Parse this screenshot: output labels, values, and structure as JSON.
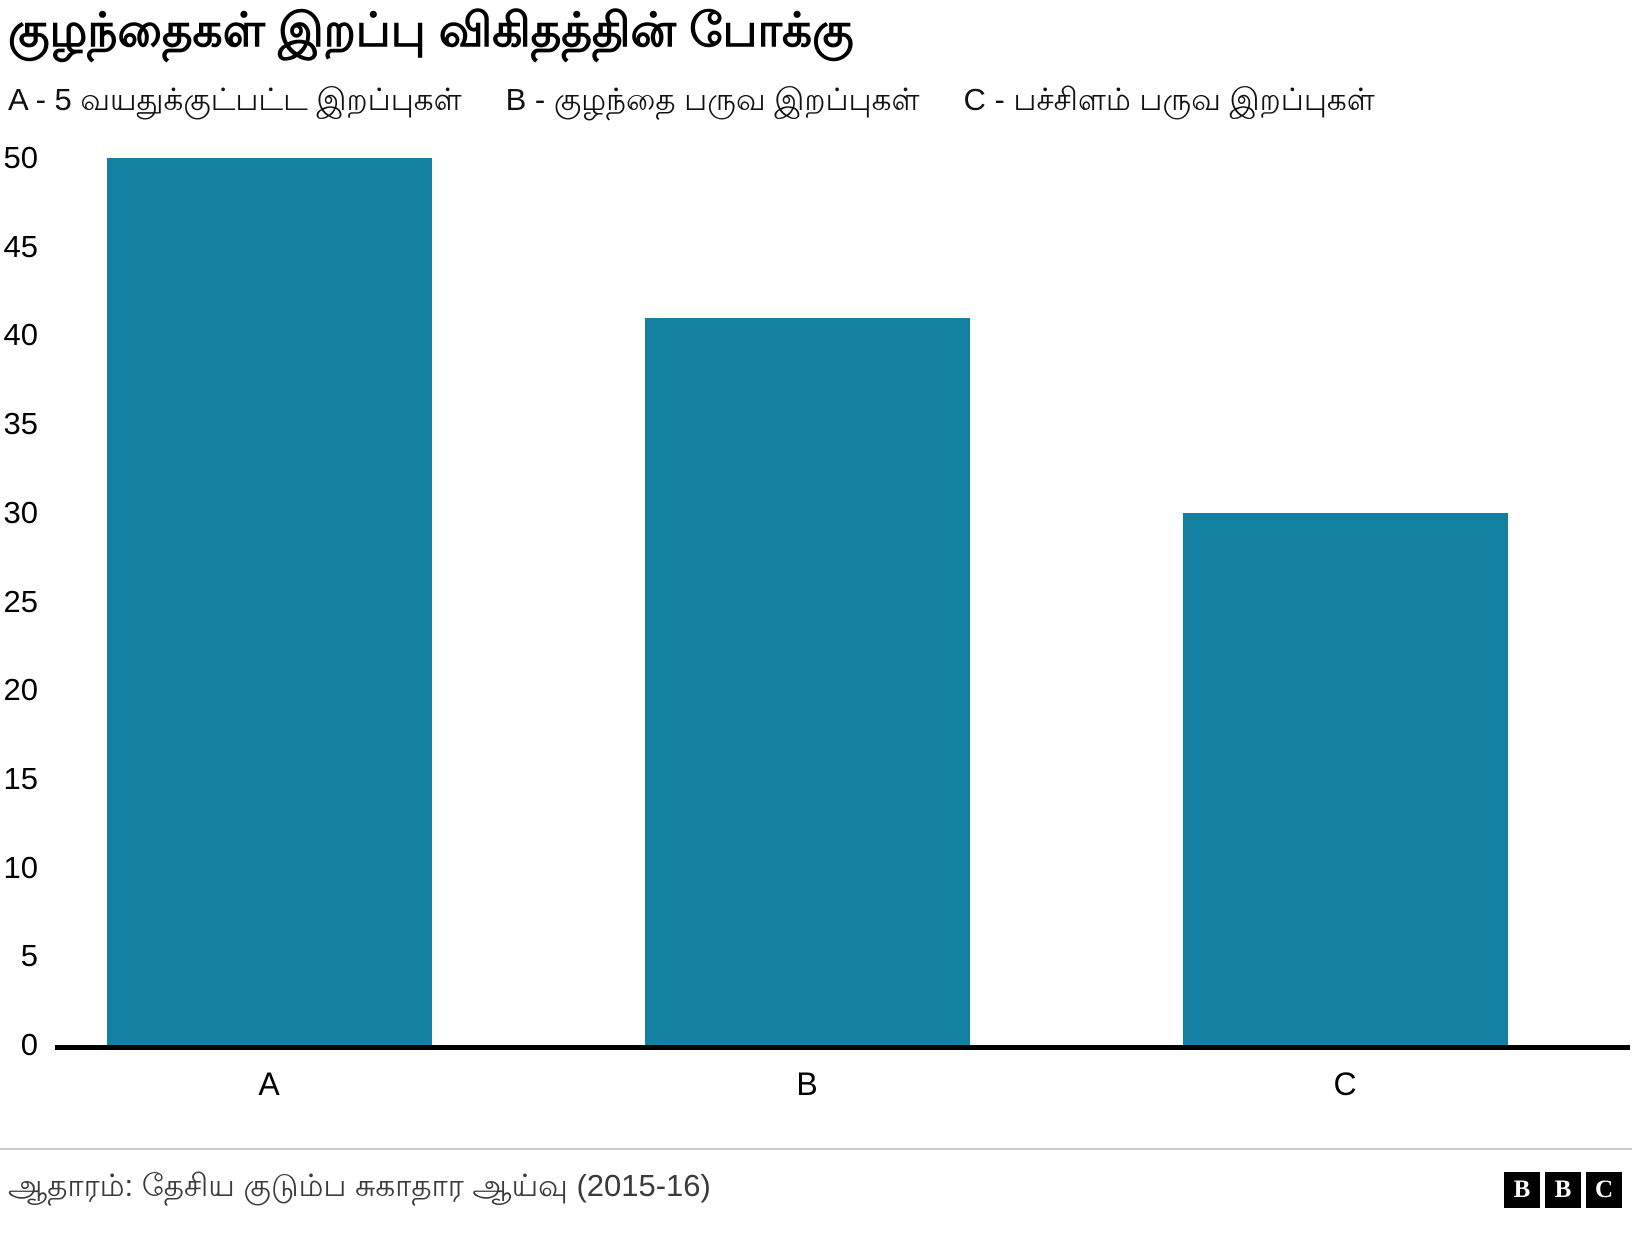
{
  "header": {
    "title": "குழந்தைகள் இறப்பு விகிதத்தின் போக்கு",
    "legend": [
      "A - 5 வயதுக்குட்பட்ட இறப்புகள்",
      "B - குழந்தை பருவ இறப்புகள்",
      "C - பச்சிளம் பருவ இறப்புகள்"
    ]
  },
  "chart_data": {
    "type": "bar",
    "title": "குழந்தைகள் இறப்பு விகிதத்தின் போக்கு",
    "categories": [
      "A",
      "B",
      "C"
    ],
    "values": [
      50,
      41,
      30
    ],
    "legend_entries": [
      "A - 5 வயதுக்குட்பட்ட இறப்புகள்",
      "B - குழந்தை பருவ இறப்புகள்",
      "C - பச்சிளம் பருவ இறப்புகள்"
    ],
    "xlabel": "",
    "ylabel": "",
    "ylim": [
      0,
      50
    ],
    "yticks": [
      0,
      5,
      10,
      15,
      20,
      25,
      30,
      35,
      40,
      45,
      50
    ],
    "bar_color": "#1380A1",
    "grid": false,
    "legend_position": "top"
  },
  "footer": {
    "source": "ஆதாரம்: தேசிய குடும்ப சுகாதார ஆய்வு (2015-16)",
    "logo_letters": [
      "B",
      "B",
      "C"
    ]
  }
}
